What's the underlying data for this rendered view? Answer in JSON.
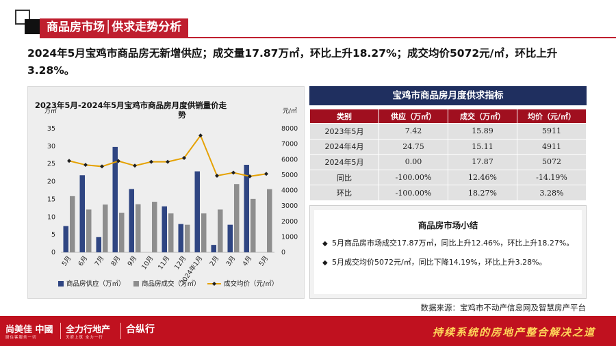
{
  "header": {
    "title": "商品房市场│供求走势分析"
  },
  "headline": "2024年5月宝鸡市商品房无新增供应；成交量17.87万㎡，环比上升18.27%；成交均价5072元/㎡，环比上升3.28%。",
  "chart_data": {
    "type": "bar",
    "title": "2023年5月-2024年5月宝鸡市商品房月度供销量价走势",
    "ylabel_left": "万㎡",
    "ylabel_right": "元/㎡",
    "ylim_left": [
      0,
      35
    ],
    "ylim_right": [
      0,
      8000
    ],
    "left_ticks": [
      "0",
      "5",
      "10",
      "15",
      "20",
      "25",
      "30",
      "35"
    ],
    "right_ticks": [
      "0",
      "1000",
      "2000",
      "3000",
      "4000",
      "5000",
      "6000",
      "7000",
      "8000"
    ],
    "categories": [
      "5月",
      "6月",
      "7月",
      "8月",
      "9月",
      "10月",
      "11月",
      "12月",
      "2024年1月",
      "2月",
      "3月",
      "4月",
      "5月"
    ],
    "series": [
      {
        "name": "商品房供应（万㎡）",
        "type": "bar",
        "axis": "left",
        "color": "#2f4582",
        "values": [
          7.42,
          21.8,
          4.3,
          29.8,
          17.9,
          0,
          13.0,
          8.0,
          22.9,
          2.1,
          7.8,
          24.75,
          0.0
        ]
      },
      {
        "name": "商品房成交（万㎡）",
        "type": "bar",
        "axis": "left",
        "color": "#8e8e8e",
        "values": [
          15.89,
          12.1,
          13.5,
          11.2,
          13.6,
          14.3,
          11.0,
          7.8,
          11.0,
          12.1,
          19.3,
          15.11,
          17.87
        ]
      },
      {
        "name": "成交均价（元/㎡）",
        "type": "line",
        "axis": "right",
        "color": "#e5a100",
        "values": [
          5911,
          5650,
          5550,
          5900,
          5600,
          5850,
          5850,
          6100,
          7550,
          4950,
          5150,
          4911,
          5072
        ]
      }
    ],
    "legend_position": "bottom"
  },
  "table": {
    "title": "宝鸡市商品房月度供求指标",
    "headers": [
      "类别",
      "供应（万㎡）",
      "成交（万㎡）",
      "均价（元/㎡）"
    ],
    "rows": [
      [
        "2023年5月",
        "7.42",
        "15.89",
        "5911"
      ],
      [
        "2024年4月",
        "24.75",
        "15.11",
        "4911"
      ],
      [
        "2024年5月",
        "0.00",
        "17.87",
        "5072"
      ],
      [
        "同比",
        "-100.00%",
        "12.46%",
        "-14.19%"
      ],
      [
        "环比",
        "-100.00%",
        "18.27%",
        "3.28%"
      ]
    ]
  },
  "summary": {
    "title": "商品房市场小结",
    "bullet": "◆",
    "items": [
      "5月商品房市场成交17.87万㎡，同比上升12.46%，环比上升18.27%。",
      "5月成交均价5072元/㎡，同比下降14.19%，环比上升3.28%。"
    ]
  },
  "source": "数据来源：宝鸡市不动产信息网及智慧房产平台",
  "footer": {
    "logo1": "尚美佳 中國",
    "logo1_sub": "厨住客服务一切",
    "logo2": "全力行地产",
    "logo2_sub": "天府上筑 全力一行",
    "logo3": "合纵行",
    "slogan": "持续系统的房地产整合解决之道"
  },
  "colors": {
    "brand_red": "#bf1e2e",
    "navy": "#1f2f5f",
    "supply_bar": "#2f4582",
    "deal_bar": "#8e8e8e",
    "price_line": "#e5a100"
  }
}
